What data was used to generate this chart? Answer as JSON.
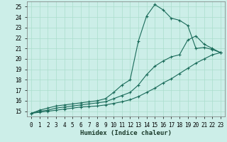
{
  "xlabel": "Humidex (Indice chaleur)",
  "bg_color": "#cceee8",
  "grid_color": "#aaddcc",
  "line_color": "#1a6b5a",
  "marker": "+",
  "xlim": [
    -0.5,
    23.5
  ],
  "ylim": [
    14.5,
    25.5
  ],
  "xticks": [
    0,
    1,
    2,
    3,
    4,
    5,
    6,
    7,
    8,
    9,
    10,
    11,
    12,
    13,
    14,
    15,
    16,
    17,
    18,
    19,
    20,
    21,
    22,
    23
  ],
  "yticks": [
    15,
    16,
    17,
    18,
    19,
    20,
    21,
    22,
    23,
    24,
    25
  ],
  "series1_x": [
    0,
    1,
    2,
    3,
    4,
    5,
    6,
    7,
    8,
    9,
    10,
    11,
    12,
    13,
    14,
    15,
    16,
    17,
    18,
    19,
    20,
    21,
    22,
    23
  ],
  "series1_y": [
    14.8,
    15.1,
    15.3,
    15.5,
    15.6,
    15.7,
    15.8,
    15.9,
    16.0,
    16.2,
    16.8,
    17.5,
    18.0,
    21.7,
    24.1,
    25.2,
    24.7,
    23.9,
    23.7,
    23.2,
    21.0,
    21.1,
    20.9,
    20.6
  ],
  "series2_x": [
    0,
    1,
    2,
    3,
    4,
    5,
    6,
    7,
    8,
    9,
    10,
    11,
    12,
    13,
    14,
    15,
    16,
    17,
    18,
    19,
    20,
    21,
    22,
    23
  ],
  "series2_y": [
    14.8,
    15.0,
    15.1,
    15.3,
    15.4,
    15.5,
    15.6,
    15.7,
    15.8,
    15.9,
    16.2,
    16.5,
    16.8,
    17.5,
    18.5,
    19.3,
    19.8,
    20.2,
    20.4,
    21.8,
    22.2,
    21.4,
    21.0,
    20.6
  ],
  "series3_x": [
    0,
    1,
    2,
    3,
    4,
    5,
    6,
    7,
    8,
    9,
    10,
    11,
    12,
    13,
    14,
    15,
    16,
    17,
    18,
    19,
    20,
    21,
    22,
    23
  ],
  "series3_y": [
    14.8,
    14.9,
    15.0,
    15.1,
    15.2,
    15.3,
    15.4,
    15.45,
    15.5,
    15.6,
    15.75,
    15.9,
    16.1,
    16.4,
    16.8,
    17.2,
    17.7,
    18.1,
    18.6,
    19.1,
    19.6,
    20.0,
    20.4,
    20.6
  ],
  "markersize": 3,
  "linewidth": 0.8,
  "xlabel_fontsize": 6.5,
  "tick_fontsize": 5.5
}
